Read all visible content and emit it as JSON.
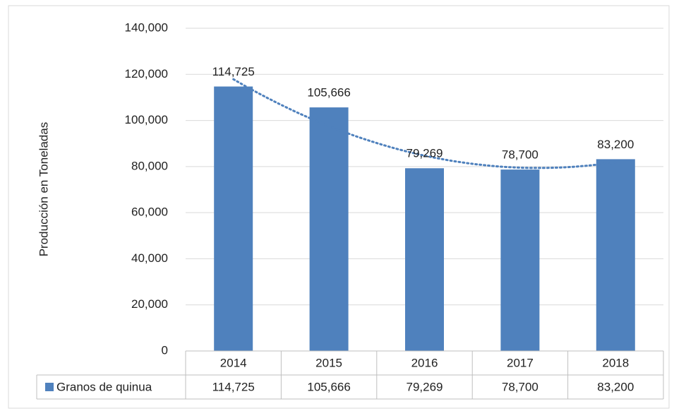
{
  "chart_data": {
    "type": "bar",
    "y_label": "Producción en Toneladas",
    "categories": [
      "2014",
      "2015",
      "2016",
      "2017",
      "2018"
    ],
    "series": [
      {
        "name": "Granos de quinua",
        "color": "#4f81bd",
        "values": [
          114725,
          105666,
          79269,
          78700,
          83200
        ],
        "value_labels": [
          "114,725",
          "105,666",
          "79,269",
          "78,700",
          "83,200"
        ]
      }
    ],
    "ylim": [
      0,
      140000
    ],
    "yticks": [
      0,
      {
        "value": 20000,
        "label": "20,000"
      },
      {
        "value": 40000,
        "label": "40,000"
      },
      {
        "value": 60000,
        "label": "60,000"
      },
      {
        "value": 80000,
        "label": "80,000"
      },
      {
        "value": 100000,
        "label": "100,000"
      },
      {
        "value": 120000,
        "label": "120,000"
      },
      {
        "value": 140000,
        "label": "140,000"
      }
    ],
    "grid": true,
    "trendline": {
      "type": "polynomial",
      "order": 2,
      "color": "#4f81bd"
    },
    "data_table": true
  }
}
